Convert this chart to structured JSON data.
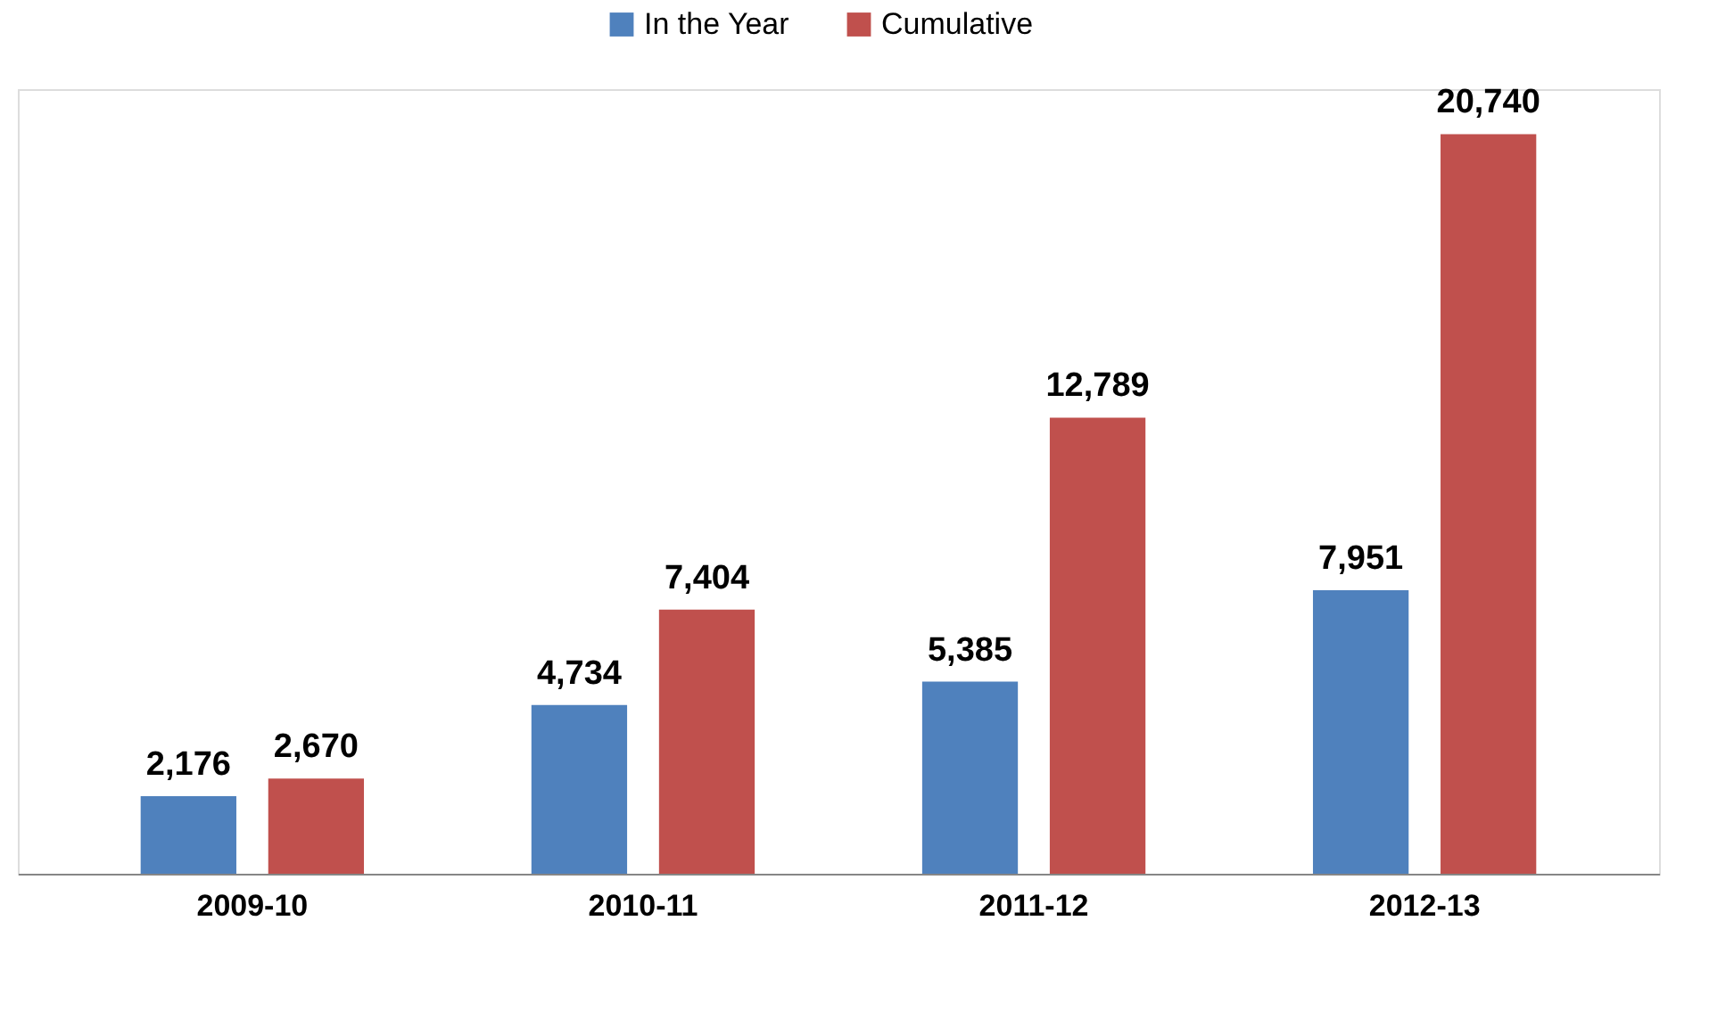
{
  "chart_data": {
    "type": "bar",
    "categories": [
      "2009-10",
      "2010-11",
      "2011-12",
      "2012-13"
    ],
    "series": [
      {
        "name": "In the Year",
        "color": "#4f81bd",
        "values": [
          2176,
          4734,
          5385,
          7951
        ],
        "value_labels": [
          "2,176",
          "4,734",
          "5,385",
          "7,951"
        ]
      },
      {
        "name": "Cumulative",
        "color": "#c0504d",
        "values": [
          2670,
          7404,
          12789,
          20740
        ],
        "value_labels": [
          "2,670",
          "7,404",
          "12,789",
          "20,740"
        ]
      }
    ],
    "legend": "top"
  }
}
